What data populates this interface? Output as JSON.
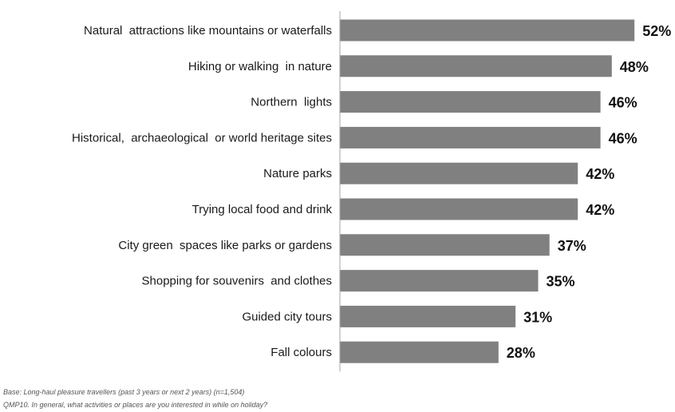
{
  "chart_data": {
    "type": "bar",
    "orientation": "horizontal",
    "categories": [
      "Natural  attractions like mountains or waterfalls",
      "Hiking or walking  in nature",
      "Northern  lights",
      "Historical,  archaeological  or world heritage sites",
      "Nature parks",
      "Trying local food and drink",
      "City green  spaces like parks or gardens",
      "Shopping for souvenirs  and clothes",
      "Guided city tours",
      "Fall colours"
    ],
    "values": [
      52,
      48,
      46,
      46,
      42,
      42,
      37,
      35,
      31,
      28
    ],
    "value_labels": [
      "52%",
      "48%",
      "46%",
      "46%",
      "42%",
      "42%",
      "37%",
      "35%",
      "31%",
      "28%"
    ],
    "xlim": [
      0,
      100
    ],
    "title": "",
    "xlabel": "",
    "ylabel": "",
    "grid": false,
    "colors": {
      "bar": "#808080",
      "axis": "#a6a6a6"
    }
  },
  "footnotes": {
    "base": "Base: Long-haul pleasure travellers (past 3 years or next 2 years) (n=1,504)",
    "question": "QMP10.  In general,  what activities or places are you interested in while on holiday?"
  }
}
